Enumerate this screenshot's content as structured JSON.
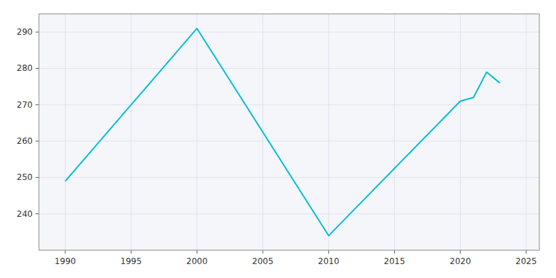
{
  "chart_data": {
    "type": "line",
    "x": [
      1990,
      2000,
      2010,
      2020,
      2021,
      2022,
      2023
    ],
    "values": [
      249,
      291,
      234,
      271,
      272,
      279,
      276
    ],
    "color": "#00BCD4",
    "xlim": [
      1988,
      2026
    ],
    "ylim": [
      230,
      295
    ],
    "xticks": [
      1990,
      1995,
      2000,
      2005,
      2010,
      2015,
      2020,
      2025
    ],
    "yticks": [
      240,
      250,
      260,
      270,
      280,
      290
    ],
    "grid": true
  }
}
